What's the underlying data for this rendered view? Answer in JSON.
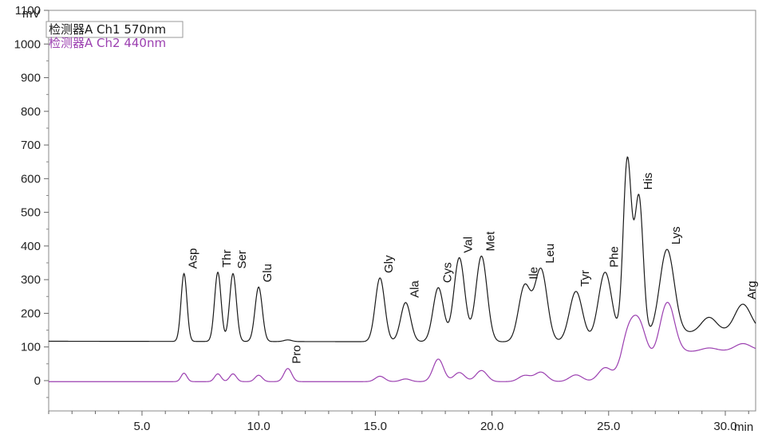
{
  "chart_data": {
    "type": "line",
    "x_unit": "min",
    "y_unit": "mV",
    "xlim": [
      1.0,
      31.3
    ],
    "ylim": [
      -90,
      1100
    ],
    "x_ticks": [
      5.0,
      10.0,
      15.0,
      20.0,
      25.0,
      30.0
    ],
    "x_tick_labels": [
      "5.0",
      "10.0",
      "15.0",
      "20.0",
      "25.0",
      "30.0"
    ],
    "x_minor_step": 1.0,
    "y_ticks": [
      0,
      100,
      200,
      300,
      400,
      500,
      600,
      700,
      800,
      900,
      1000,
      1100
    ],
    "y_tick_labels": [
      "0",
      "100",
      "200",
      "300",
      "400",
      "500",
      "600",
      "700",
      "800",
      "900",
      "1000",
      "1100"
    ],
    "legend": {
      "placement": "top-left",
      "boxed_entry": 0
    },
    "series": [
      {
        "name": "检测器A Ch1 570nm",
        "color": "#1a1a1a",
        "baseline": [
          [
            1.0,
            117
          ],
          [
            23.5,
            115
          ],
          [
            25.6,
            118
          ],
          [
            27.5,
            140
          ],
          [
            31.3,
            148
          ]
        ],
        "peaks": [
          {
            "label": "Asp",
            "rt": 6.8,
            "height": 318
          },
          {
            "label": "Thr",
            "rt": 8.25,
            "height": 322
          },
          {
            "label": "Ser",
            "rt": 8.9,
            "height": 318
          },
          {
            "label": "Glu",
            "rt": 10.0,
            "height": 278
          },
          {
            "label": "Pro",
            "rt": 11.25,
            "height": 121,
            "label_channel": 1
          },
          {
            "label": "Gly",
            "rt": 15.2,
            "height": 305
          },
          {
            "label": "Ala",
            "rt": 16.3,
            "height": 232
          },
          {
            "label": "Cys",
            "rt": 17.7,
            "height": 276
          },
          {
            "label": "Val",
            "rt": 18.6,
            "height": 365
          },
          {
            "label": "Met",
            "rt": 19.55,
            "height": 370
          },
          {
            "label": "Ile",
            "rt": 21.4,
            "height": 280
          },
          {
            "label": "Leu",
            "rt": 22.1,
            "height": 330
          },
          {
            "label": "Tyr",
            "rt": 23.6,
            "height": 265
          },
          {
            "label": "Phe",
            "rt": 24.85,
            "height": 322
          },
          {
            "label": "",
            "rt": 25.8,
            "height": 654
          },
          {
            "label": "His",
            "rt": 26.3,
            "height": 542
          },
          {
            "label": "Lys",
            "rt": 27.5,
            "height": 390
          },
          {
            "label": "",
            "rt": 29.3,
            "height": 188
          },
          {
            "label": "Arg",
            "rt": 30.75,
            "height": 227
          }
        ]
      },
      {
        "name": "检测器A Ch2 440nm",
        "color": "#9b3fb0",
        "baseline": [
          [
            1.0,
            -3
          ],
          [
            25.5,
            -3
          ],
          [
            26.6,
            45
          ],
          [
            27.35,
            72
          ],
          [
            27.7,
            85
          ],
          [
            31.3,
            90
          ]
        ],
        "peaks": [
          {
            "rt": 6.8,
            "height": 22
          },
          {
            "rt": 8.25,
            "height": 20
          },
          {
            "rt": 8.9,
            "height": 20
          },
          {
            "rt": 10.0,
            "height": 16
          },
          {
            "rt": 11.25,
            "height": 36
          },
          {
            "rt": 15.2,
            "height": 13
          },
          {
            "rt": 16.3,
            "height": 5
          },
          {
            "rt": 17.7,
            "height": 64
          },
          {
            "rt": 18.6,
            "height": 24
          },
          {
            "rt": 19.55,
            "height": 30
          },
          {
            "rt": 21.4,
            "height": 15
          },
          {
            "rt": 22.1,
            "height": 25
          },
          {
            "rt": 23.6,
            "height": 17
          },
          {
            "rt": 24.85,
            "height": 38
          },
          {
            "rt": 25.8,
            "height": 125
          },
          {
            "rt": 26.3,
            "height": 158
          },
          {
            "rt": 27.5,
            "height": 232
          },
          {
            "rt": 29.3,
            "height": 97
          },
          {
            "rt": 30.75,
            "height": 110
          }
        ]
      }
    ]
  }
}
